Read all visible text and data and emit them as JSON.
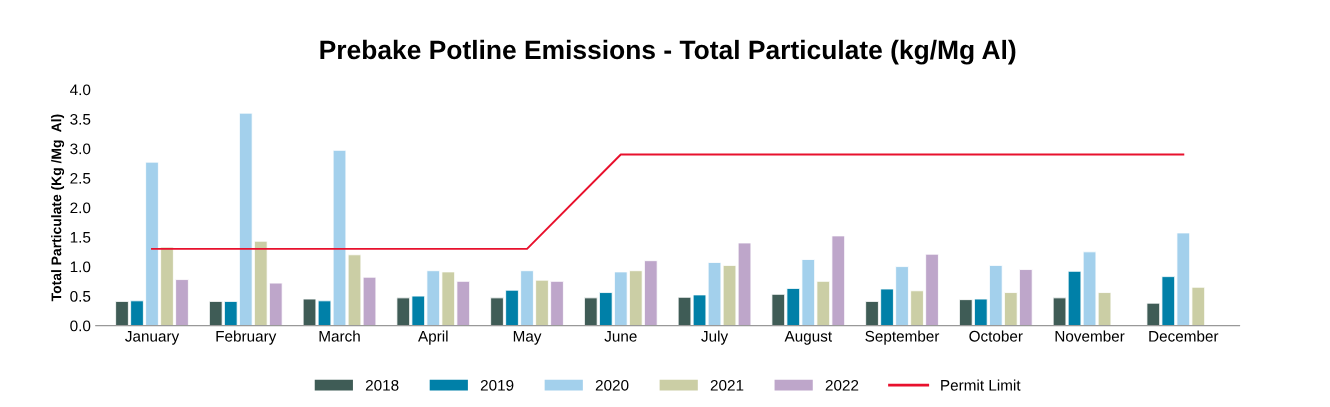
{
  "chart_data": {
    "type": "bar",
    "title": "Prebake Potline Emissions - Total Particulate (kg/Mg Al)",
    "ylabel": "Total Particulate (Kg /Mg  Al)",
    "categories": [
      "January",
      "February",
      "March",
      "April",
      "May",
      "June",
      "July",
      "August",
      "September",
      "October",
      "November",
      "December"
    ],
    "series": [
      {
        "name": "2018",
        "color": "#3f5c56",
        "values": [
          0.41,
          0.41,
          0.45,
          0.47,
          0.47,
          0.47,
          0.48,
          0.53,
          0.41,
          0.44,
          0.47,
          0.38
        ]
      },
      {
        "name": "2019",
        "color": "#0080a8",
        "values": [
          0.42,
          0.41,
          0.42,
          0.5,
          0.6,
          0.56,
          0.52,
          0.63,
          0.62,
          0.45,
          0.92,
          0.83
        ]
      },
      {
        "name": "2020",
        "color": "#a3d0ec",
        "values": [
          2.77,
          3.6,
          2.97,
          0.93,
          0.93,
          0.91,
          1.07,
          1.12,
          1.0,
          1.02,
          1.25,
          1.57
        ]
      },
      {
        "name": "2021",
        "color": "#cbcea5",
        "values": [
          1.33,
          1.43,
          1.2,
          0.91,
          0.77,
          0.93,
          1.02,
          0.75,
          0.59,
          0.56,
          0.56,
          0.65
        ]
      },
      {
        "name": "2022",
        "color": "#bea6ca",
        "values": [
          0.78,
          0.72,
          0.82,
          0.75,
          0.75,
          1.1,
          1.4,
          1.52,
          1.21,
          0.95,
          null,
          null
        ]
      },
      {
        "name": "Permit Limit",
        "type": "line",
        "color": "#e8112d",
        "values": [
          1.3,
          1.3,
          1.3,
          1.3,
          1.3,
          2.9,
          2.9,
          2.9,
          2.9,
          2.9,
          2.9,
          2.9
        ]
      }
    ],
    "ylim": [
      0,
      4
    ],
    "yticks": [
      {
        "value": 0,
        "label": "0.0"
      },
      {
        "value": 0.5,
        "label": "0.5"
      },
      {
        "value": 1,
        "label": "1.0"
      },
      {
        "value": 1.5,
        "label": "1.5"
      },
      {
        "value": 2,
        "label": "2.0"
      },
      {
        "value": 2.5,
        "label": "2.5"
      },
      {
        "value": 3,
        "label": "3.0"
      },
      {
        "value": 3.5,
        "label": "3.5"
      },
      {
        "value": 4,
        "label": "4.0"
      }
    ],
    "grid": false,
    "legend": "bottom",
    "marker": "none",
    "line_style": "solid"
  }
}
